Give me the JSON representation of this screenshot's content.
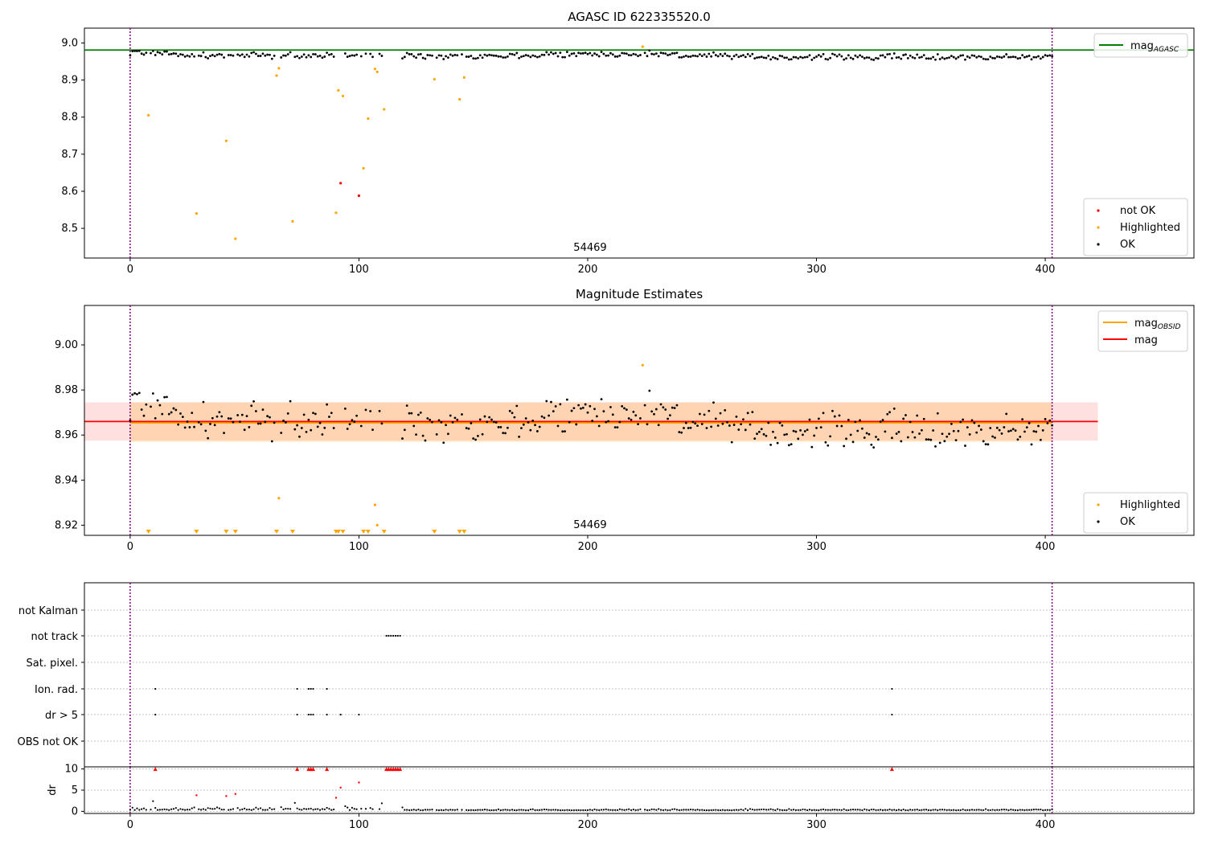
{
  "figure": {
    "title": "AGASC ID 622335520.0"
  },
  "chart_data": [
    {
      "type": "scatter",
      "title": "AGASC ID 622335520.0",
      "xlim": [
        -20,
        465
      ],
      "ylim": [
        8.42,
        9.04
      ],
      "x_ticks": [
        0,
        100,
        200,
        300,
        400
      ],
      "y_ticks": [
        8.5,
        8.6,
        8.7,
        8.8,
        8.9,
        9.0
      ],
      "y_tick_labels": [
        "8.5",
        "8.6",
        "8.7",
        "8.8",
        "8.9",
        "9.0"
      ],
      "vlines": [
        0,
        403
      ],
      "vline_color": "#800080",
      "obsid_label": {
        "text": "54469",
        "x": 200,
        "y": 8.44
      },
      "hline": {
        "name": "mag_AGASC",
        "y": 8.981,
        "color": "#008000"
      },
      "legend_top": {
        "placement": "top-right",
        "entries": [
          {
            "label": "mag",
            "sub": "AGASC",
            "color": "#008000"
          }
        ]
      },
      "legend_bottom": {
        "placement": "lower-right",
        "entries": [
          {
            "label": "not OK",
            "color": "#ff0000"
          },
          {
            "label": "Highlighted",
            "color": "#ffa500"
          },
          {
            "label": "OK",
            "color": "#000000"
          }
        ]
      },
      "series": [
        {
          "name": "not OK",
          "color": "#ff0000",
          "points": [
            [
              92,
              8.622
            ],
            [
              100,
              8.588
            ]
          ]
        },
        {
          "name": "Highlighted",
          "color": "#ffa500",
          "points": [
            [
              8,
              8.805
            ],
            [
              29,
              8.54
            ],
            [
              42,
              8.736
            ],
            [
              46,
              8.472
            ],
            [
              64,
              8.912
            ],
            [
              65,
              8.932
            ],
            [
              71,
              8.519
            ],
            [
              90,
              8.542
            ],
            [
              91,
              8.872
            ],
            [
              93,
              8.857
            ],
            [
              104,
              8.796
            ],
            [
              102,
              8.662
            ],
            [
              107,
              8.93
            ],
            [
              108,
              8.922
            ],
            [
              111,
              8.821
            ],
            [
              133,
              8.902
            ],
            [
              144,
              8.848
            ],
            [
              146,
              8.907
            ],
            [
              224,
              8.99
            ]
          ]
        },
        {
          "name": "OK",
          "color": "#000000",
          "generator": "ok_top"
        }
      ]
    },
    {
      "type": "scatter",
      "title": "Magnitude Estimates",
      "xlim": [
        -20,
        465
      ],
      "ylim": [
        8.9155,
        9.0175
      ],
      "x_ticks": [
        0,
        100,
        200,
        300,
        400
      ],
      "y_ticks": [
        8.92,
        8.94,
        8.96,
        8.98,
        9.0
      ],
      "y_tick_labels": [
        "8.92",
        "8.94",
        "8.96",
        "8.98",
        "9.00"
      ],
      "vlines": [
        0,
        403
      ],
      "obsid_label": {
        "text": "54469",
        "x": 200,
        "y": 8.918
      },
      "mag_line": {
        "name": "mag",
        "y": 8.966,
        "band": [
          8.9575,
          8.9745
        ],
        "color": "#ff0000",
        "xrange": [
          -20,
          423
        ]
      },
      "mag_obsid_line": {
        "name": "mag_OBSID",
        "y": 8.9655,
        "band": [
          8.957,
          8.9745
        ],
        "color": "#ffa500",
        "xrange": [
          0,
          403
        ]
      },
      "legend_top": {
        "placement": "top-right",
        "entries": [
          {
            "label": "mag",
            "sub": "OBSID",
            "color": "#ffa500"
          },
          {
            "label": "mag",
            "sub": "",
            "color": "#ff0000"
          }
        ]
      },
      "legend_bottom": {
        "placement": "lower-right",
        "entries": [
          {
            "label": "Highlighted",
            "color": "#ffa500"
          },
          {
            "label": "OK",
            "color": "#000000"
          }
        ]
      },
      "series": [
        {
          "name": "Highlighted",
          "color": "#ffa500",
          "points": [
            [
              65,
              8.932
            ],
            [
              107,
              8.929
            ],
            [
              108,
              8.92
            ],
            [
              224,
              8.991
            ]
          ]
        },
        {
          "name": "Highlighted (off-scale)",
          "color": "#ffa500",
          "marker": "triangle-down",
          "x": [
            8,
            29,
            42,
            46,
            64,
            71,
            90,
            91,
            93,
            102,
            104,
            111,
            133,
            144,
            146
          ]
        },
        {
          "name": "OK",
          "color": "#000000",
          "generator": "ok_mid"
        }
      ]
    },
    {
      "type": "scatter",
      "title": "",
      "xlim": [
        -20,
        465
      ],
      "category_axis": [
        "not Kalman",
        "not track",
        "Sat. pixel.",
        "Ion. rad.",
        "dr > 5",
        "OBS not OK"
      ],
      "flags": {
        "not track": [
          112,
          113,
          114,
          115,
          116,
          117,
          118
        ],
        "Ion. rad.": [
          11,
          73,
          78,
          79,
          80,
          86,
          333
        ],
        "dr > 5": [
          11,
          73,
          78,
          79,
          80,
          86,
          92,
          100,
          333
        ]
      },
      "vlines": [
        0,
        403
      ]
    },
    {
      "type": "scatter",
      "title": "",
      "ylabel": "dr",
      "xlim": [
        -20,
        465
      ],
      "ylim": [
        -0.5,
        10.5
      ],
      "y_ticks": [
        0,
        5,
        10
      ],
      "x_ticks": [
        0,
        100,
        200,
        300,
        400
      ],
      "vlines": [
        0,
        403
      ],
      "series": [
        {
          "name": "dr > 10 (clipped)",
          "color": "#ff0000",
          "marker": "triangle-up",
          "x": [
            11,
            73,
            78,
            79,
            80,
            86,
            112,
            113,
            114,
            115,
            116,
            117,
            118,
            333
          ]
        },
        {
          "name": "dr (not OK)",
          "color": "#ff0000",
          "points": [
            [
              29,
              3.8
            ],
            [
              42,
              3.6
            ],
            [
              46,
              4.1
            ],
            [
              90,
              3.2
            ],
            [
              92,
              5.6
            ],
            [
              100,
              6.8
            ]
          ]
        },
        {
          "name": "dr (OK)",
          "color": "#000000",
          "generator": "dr_ok"
        }
      ]
    }
  ]
}
